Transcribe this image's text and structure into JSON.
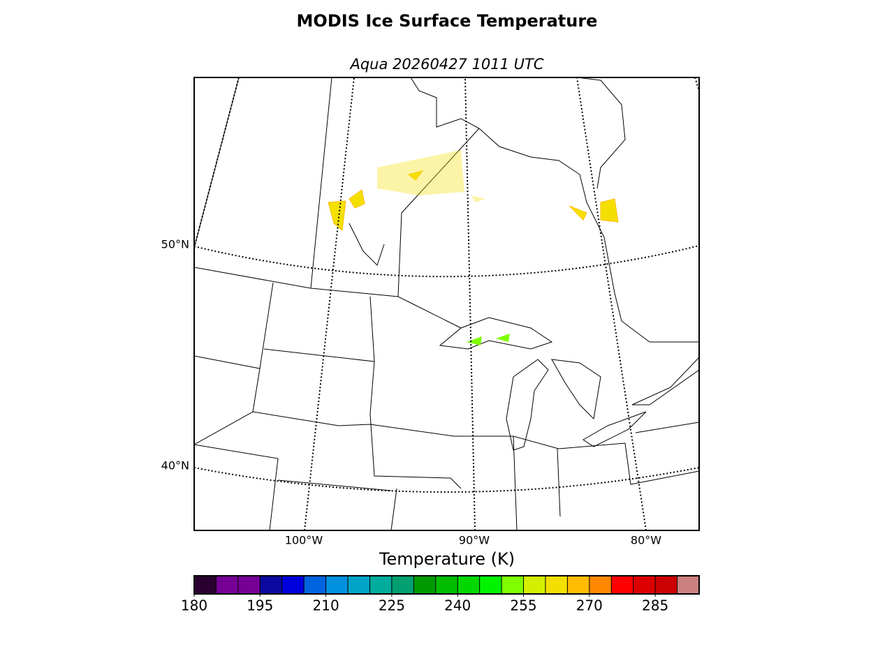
{
  "header": {
    "title": "MODIS Ice Surface Temperature",
    "subtitle": "Aqua 20260427 1011 UTC"
  },
  "map": {
    "lat_labels": [
      "50°N",
      "40°N"
    ],
    "lon_labels": [
      "100°W",
      "90°W",
      "80°W"
    ]
  },
  "colorbar": {
    "label": "Temperature (K)",
    "bounds": [
      180,
      185,
      190,
      195,
      200,
      205,
      210,
      215,
      220,
      225,
      230,
      235,
      240,
      245,
      250,
      255,
      260,
      265,
      270,
      275,
      280,
      285,
      290,
      295
    ],
    "colors": [
      "#2a0030",
      "#760096",
      "#760096",
      "#0a0aa0",
      "#0000dd",
      "#0064e0",
      "#0090e0",
      "#00a4c8",
      "#00ac9c",
      "#00a070",
      "#009a00",
      "#00bc00",
      "#00d800",
      "#00f400",
      "#80ff00",
      "#d4f000",
      "#f4e000",
      "#ffbc00",
      "#ff8800",
      "#ff0000",
      "#dd0000",
      "#cc0000",
      "#cc8080"
    ],
    "ticks": [
      180,
      195,
      210,
      225,
      240,
      255,
      270,
      285
    ]
  }
}
